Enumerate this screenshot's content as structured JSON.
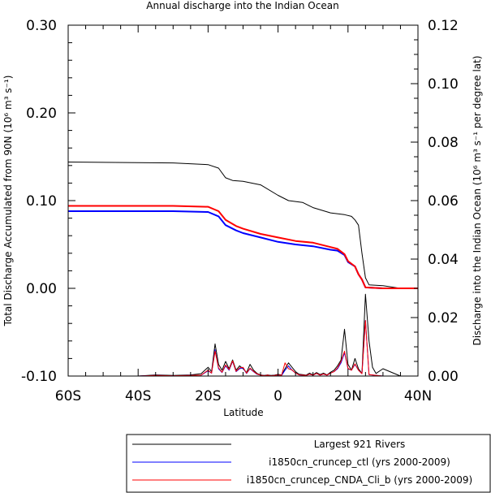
{
  "chart_data": {
    "type": "line",
    "title": "Annual discharge into the Indian Ocean",
    "xlabel": "Latitude",
    "ylabel_left": "Total Discharge Accumulated from 90N (10⁶ m³ s⁻¹)",
    "ylabel_right": "Discharge into the Indian Ocean (10⁶ m³ s⁻¹ per degree lat)",
    "xlim": [
      -60,
      40
    ],
    "ylim_left": [
      -0.1,
      0.3
    ],
    "ylim_right": [
      0.0,
      0.12
    ],
    "x_ticks": [
      {
        "value": -60,
        "label": "60S"
      },
      {
        "value": -40,
        "label": "40S"
      },
      {
        "value": -20,
        "label": "20S"
      },
      {
        "value": 0,
        "label": "0"
      },
      {
        "value": 20,
        "label": "20N"
      },
      {
        "value": 40,
        "label": "40N"
      }
    ],
    "y_ticks_left": [
      {
        "value": -0.1,
        "label": "-0.10"
      },
      {
        "value": 0.0,
        "label": "0.00"
      },
      {
        "value": 0.1,
        "label": "0.10"
      },
      {
        "value": 0.2,
        "label": "0.20"
      },
      {
        "value": 0.3,
        "label": "0.30"
      }
    ],
    "y_ticks_right": [
      {
        "value": 0.0,
        "label": "0.00"
      },
      {
        "value": 0.02,
        "label": "0.02"
      },
      {
        "value": 0.04,
        "label": "0.04"
      },
      {
        "value": 0.06,
        "label": "0.06"
      },
      {
        "value": 0.08,
        "label": "0.08"
      },
      {
        "value": 0.1,
        "label": "0.10"
      },
      {
        "value": 0.12,
        "label": "0.12"
      }
    ],
    "grid": false,
    "legend_position": "bottom-right",
    "series": [
      {
        "name": "Largest 921 Rivers",
        "color": "#000000",
        "axis": "left",
        "x": [
          -60,
          -30,
          -20,
          -17,
          -15,
          -13,
          -10,
          -5,
          0,
          3,
          7,
          10,
          15,
          19,
          21,
          22,
          23,
          24,
          25,
          26,
          30,
          35,
          40
        ],
        "values": [
          0.144,
          0.143,
          0.141,
          0.137,
          0.126,
          0.123,
          0.122,
          0.118,
          0.106,
          0.1,
          0.098,
          0.092,
          0.086,
          0.084,
          0.082,
          0.078,
          0.072,
          0.04,
          0.012,
          0.004,
          0.003,
          0.0,
          0.0
        ]
      },
      {
        "name": "i1850cn_cruncep_ctl (yrs 2000-2009)",
        "color": "#0000ff",
        "axis": "left",
        "x": [
          -60,
          -30,
          -20,
          -17,
          -15,
          -12,
          -10,
          -5,
          0,
          5,
          10,
          15,
          17,
          19,
          20,
          22,
          23,
          24,
          25,
          30,
          40
        ],
        "values": [
          0.088,
          0.088,
          0.087,
          0.082,
          0.072,
          0.066,
          0.063,
          0.058,
          0.053,
          0.05,
          0.048,
          0.044,
          0.043,
          0.038,
          0.03,
          0.025,
          0.016,
          0.01,
          0.001,
          0.0,
          0.0
        ]
      },
      {
        "name": "i1850cn_cruncep_CNDA_Cli_b (yrs 2000-2009)",
        "color": "#ff0000",
        "axis": "left",
        "x": [
          -60,
          -30,
          -20,
          -17,
          -15,
          -12,
          -10,
          -5,
          0,
          5,
          10,
          15,
          17,
          19,
          20,
          22,
          23,
          24,
          25,
          30,
          40
        ],
        "values": [
          0.094,
          0.094,
          0.093,
          0.088,
          0.078,
          0.071,
          0.068,
          0.062,
          0.058,
          0.054,
          0.052,
          0.047,
          0.045,
          0.039,
          0.031,
          0.025,
          0.016,
          0.01,
          0.001,
          0.0,
          0.0
        ]
      },
      {
        "name": "Largest 921 Rivers (per degree lat)",
        "color": "#000000",
        "axis": "right",
        "x": [
          -60,
          -40,
          -35,
          -30,
          -25,
          -22,
          -20,
          -19,
          -18,
          -17,
          -16,
          -15,
          -14,
          -13,
          -12,
          -11,
          -10,
          -9,
          -8,
          -7,
          -6,
          -5,
          -4,
          -3,
          -2,
          -1,
          0,
          1,
          2,
          3,
          4,
          5,
          6,
          7,
          8,
          9,
          10,
          11,
          12,
          13,
          14,
          15,
          16,
          17,
          18,
          19,
          20,
          21,
          22,
          23,
          24,
          25,
          26,
          27,
          28,
          30,
          35,
          40
        ],
        "values": [
          0.0,
          0.0,
          0.0004,
          0.0002,
          0.0004,
          0.0008,
          0.003,
          0.0015,
          0.011,
          0.004,
          0.002,
          0.005,
          0.0025,
          0.0055,
          0.002,
          0.0035,
          0.0025,
          0.0012,
          0.004,
          0.002,
          0.0009,
          0.0004,
          0.0002,
          0.0004,
          0.0002,
          0.0003,
          0.0006,
          0.0003,
          0.0025,
          0.0045,
          0.003,
          0.0015,
          0.0006,
          0.0005,
          0.0003,
          0.001,
          0.0004,
          0.0012,
          0.0005,
          0.001,
          0.0004,
          0.0013,
          0.002,
          0.0035,
          0.0055,
          0.016,
          0.004,
          0.002,
          0.006,
          0.0025,
          0.0009,
          0.028,
          0.012,
          0.003,
          0.0009,
          0.0025,
          0.0,
          0.0
        ]
      },
      {
        "name": "i1850cn_cruncep_ctl (per degree lat)",
        "color": "#0000ff",
        "axis": "right",
        "x": [
          -60,
          -40,
          -35,
          -30,
          -25,
          -22,
          -20,
          -19,
          -18,
          -17,
          -16,
          -15,
          -14,
          -13,
          -12,
          -11,
          -10,
          -9,
          -8,
          -7,
          -6,
          -5,
          -4,
          -3,
          -2,
          -1,
          0,
          1,
          2,
          3,
          4,
          5,
          6,
          7,
          8,
          9,
          10,
          11,
          12,
          13,
          14,
          15,
          16,
          17,
          18,
          19,
          20,
          21,
          22,
          23,
          24,
          25,
          26,
          30,
          40
        ],
        "values": [
          0.0,
          0.0,
          0.0002,
          0.0001,
          0.0002,
          0.0003,
          0.0018,
          0.001,
          0.009,
          0.0025,
          0.0012,
          0.0035,
          0.002,
          0.005,
          0.0015,
          0.0025,
          0.0028,
          0.0009,
          0.0025,
          0.0015,
          0.0006,
          0.0003,
          0.0001,
          0.0003,
          0.0001,
          0.0002,
          0.0004,
          0.0002,
          0.002,
          0.0035,
          0.002,
          0.001,
          0.0004,
          0.0003,
          0.0002,
          0.0006,
          0.0003,
          0.0009,
          0.0003,
          0.0007,
          0.0003,
          0.001,
          0.0015,
          0.0025,
          0.0045,
          0.008,
          0.0025,
          0.002,
          0.004,
          0.002,
          0.0008,
          0.019,
          0.0005,
          0.0,
          0.0
        ]
      },
      {
        "name": "i1850cn_cruncep_CNDA_Cli_b (per degree lat)",
        "color": "#ff0000",
        "axis": "right",
        "x": [
          -60,
          -40,
          -35,
          -30,
          -25,
          -22,
          -20,
          -19,
          -18,
          -17,
          -16,
          -15,
          -14,
          -13,
          -12,
          -11,
          -10,
          -9,
          -8,
          -7,
          -6,
          -5,
          -4,
          -3,
          -2,
          -1,
          0,
          1,
          2,
          3,
          4,
          5,
          6,
          7,
          8,
          9,
          10,
          11,
          12,
          13,
          14,
          15,
          16,
          17,
          18,
          19,
          20,
          21,
          22,
          23,
          24,
          25,
          26,
          30,
          40
        ],
        "values": [
          0.0,
          0.0,
          0.0002,
          0.0001,
          0.0002,
          0.0003,
          0.002,
          0.001,
          0.0085,
          0.0028,
          0.0013,
          0.0038,
          0.0022,
          0.0052,
          0.0016,
          0.0028,
          0.003,
          0.001,
          0.0027,
          0.0016,
          0.0007,
          0.0003,
          0.0001,
          0.0003,
          0.0001,
          0.0002,
          0.0004,
          0.0002,
          0.0045,
          0.0025,
          0.0021,
          0.001,
          0.0004,
          0.0003,
          0.0002,
          0.0006,
          0.0003,
          0.0009,
          0.0003,
          0.0007,
          0.0003,
          0.001,
          0.0015,
          0.0028,
          0.005,
          0.0085,
          0.0026,
          0.002,
          0.0042,
          0.002,
          0.0008,
          0.019,
          0.0005,
          0.0,
          0.0
        ]
      }
    ],
    "legend": [
      {
        "label": "Largest 921 Rivers",
        "color": "#000000"
      },
      {
        "label": "i1850cn_cruncep_ctl (yrs 2000-2009)",
        "color": "#0000ff"
      },
      {
        "label": "i1850cn_cruncep_CNDA_Cli_b (yrs 2000-2009)",
        "color": "#ff0000"
      }
    ]
  }
}
